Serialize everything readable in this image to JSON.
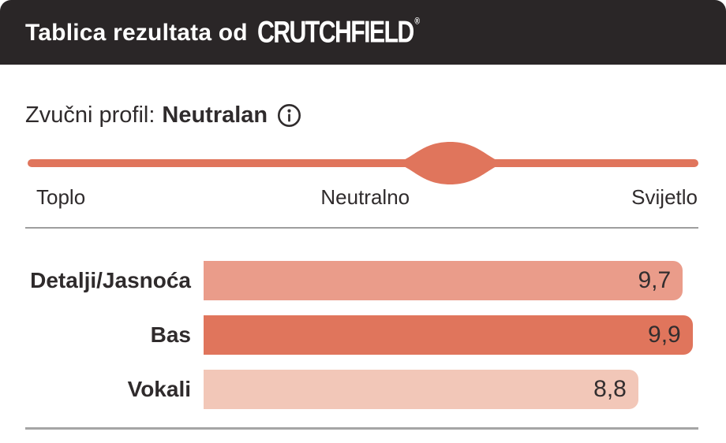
{
  "header": {
    "title_prefix": "Tablica rezultata od",
    "brand": "CRUTCHFIELD",
    "registered_mark": "®"
  },
  "profile": {
    "label": "Zvučni profil:",
    "value": "Neutralan",
    "info_icon": "info-circle-icon"
  },
  "spectrum": {
    "left_label": "Toplo",
    "center_label": "Neutralno",
    "right_label": "Svijetlo",
    "indicator_position_pct": 63,
    "line_color": "#e0755c"
  },
  "chart_data": {
    "type": "bar",
    "orientation": "horizontal",
    "title": "Tablica rezultata od CRUTCHFIELD",
    "max": 10,
    "categories": [
      "Detalji/Jasnoća",
      "Bas",
      "Vokali"
    ],
    "values": [
      9.7,
      9.9,
      8.8
    ],
    "display_values": [
      "9,7",
      "9,9",
      "8,8"
    ],
    "bar_colors": [
      "#ea9c8a",
      "#e0755c",
      "#f2c7b8"
    ],
    "sound_profile_scale": {
      "left": "Toplo",
      "center": "Neutralno",
      "right": "Svijetlo",
      "selected": "Neutralan",
      "indicator_position_pct": 63
    }
  },
  "colors": {
    "header_bg": "#2a2627",
    "header_text": "#ffffff",
    "body_text": "#2f2b2c",
    "accent": "#e0755c",
    "divider": "#9e9e9e"
  }
}
